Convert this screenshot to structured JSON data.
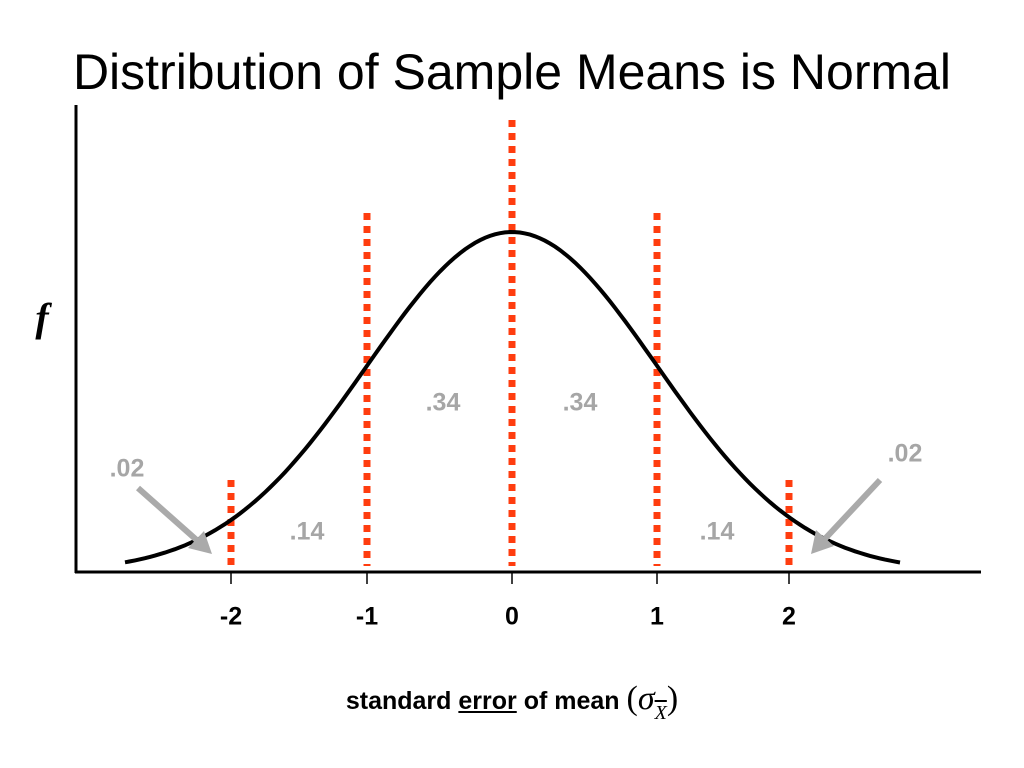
{
  "title": "Distribution of Sample Means is Normal",
  "y_axis_label": "f",
  "x_ticks": [
    "-2",
    "-1",
    "0",
    "1",
    "2"
  ],
  "area_labels": [
    ".02",
    ".14",
    ".34",
    ".34",
    ".14",
    ".02"
  ],
  "x_axis_label": {
    "before": "standard ",
    "underlined": "error",
    "after": " of mean",
    "open": "(",
    "symbol": "σ",
    "subscript": "X",
    "close": ")"
  }
}
